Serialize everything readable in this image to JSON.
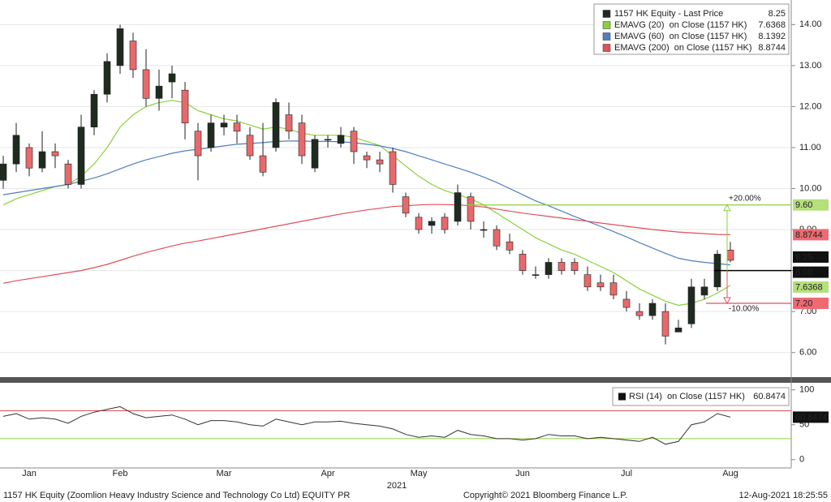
{
  "chart_data": [
    {
      "type": "candlestick",
      "x_label": "2021",
      "legend": "top-right",
      "grid": true,
      "categories": [
        null,
        null,
        "Jan",
        null,
        null,
        null,
        null,
        null,
        null,
        "Feb",
        null,
        null,
        null,
        null,
        null,
        null,
        null,
        "Mar",
        null,
        null,
        null,
        null,
        null,
        null,
        null,
        "Apr",
        null,
        null,
        null,
        null,
        null,
        null,
        "May",
        null,
        null,
        null,
        null,
        null,
        null,
        null,
        "Jun",
        null,
        null,
        null,
        null,
        null,
        null,
        null,
        "Jul",
        null,
        null,
        null,
        null,
        null,
        null,
        null,
        "Aug"
      ],
      "ylim": [
        5.4,
        14.6
      ],
      "yticks": [
        {
          "value": 6,
          "label": "6.00"
        },
        {
          "value": 7,
          "label": "7.00"
        },
        {
          "value": 8,
          "label": "8.00"
        },
        {
          "value": 9,
          "label": "9.00"
        },
        {
          "value": 10,
          "label": "10.00"
        },
        {
          "value": 11,
          "label": "11.00"
        },
        {
          "value": 12,
          "label": "12.00"
        },
        {
          "value": 13,
          "label": "13.00"
        },
        {
          "value": 14,
          "label": "14.00"
        }
      ],
      "candles": {
        "name": "1157 HK Equity - Last Price",
        "color": "#1f2b1f",
        "up_color": "#1f2b1f",
        "down_color": "#e8696b",
        "open": [
          10.2,
          10.6,
          11.0,
          10.5,
          10.9,
          10.6,
          10.1,
          11.5,
          12.3,
          13.0,
          13.6,
          12.9,
          12.2,
          12.6,
          12.4,
          11.4,
          11.0,
          11.5,
          11.6,
          11.3,
          10.8,
          11.0,
          11.8,
          11.6,
          10.5,
          11.2,
          11.1,
          11.4,
          10.8,
          10.7,
          10.9,
          9.8,
          9.3,
          9.1,
          9.3,
          9.2,
          9.8,
          9.0,
          9.0,
          8.7,
          8.4,
          7.9,
          7.9,
          8.2,
          8.2,
          7.9,
          7.7,
          7.7,
          7.3,
          7.0,
          6.9,
          7.0,
          6.5,
          6.7,
          7.4,
          7.6,
          8.5
        ],
        "high": [
          10.8,
          11.6,
          11.1,
          11.4,
          11.1,
          10.7,
          11.8,
          12.4,
          13.3,
          14.0,
          13.8,
          13.4,
          12.9,
          13.0,
          12.6,
          11.6,
          11.8,
          11.8,
          11.8,
          11.5,
          11.6,
          12.2,
          12.1,
          11.8,
          11.3,
          11.3,
          11.5,
          11.5,
          10.9,
          10.9,
          11.0,
          9.9,
          9.4,
          9.3,
          9.4,
          10.1,
          9.9,
          9.2,
          9.1,
          8.9,
          8.5,
          8.1,
          8.3,
          8.3,
          8.3,
          8.1,
          7.9,
          7.9,
          7.5,
          7.2,
          7.3,
          7.2,
          6.8,
          7.8,
          7.8,
          8.5,
          8.7
        ],
        "low": [
          10.0,
          10.4,
          10.3,
          10.4,
          10.5,
          10.0,
          10.0,
          11.3,
          12.1,
          12.8,
          12.7,
          12.0,
          11.9,
          12.2,
          11.2,
          10.2,
          10.9,
          11.3,
          11.1,
          10.7,
          10.3,
          10.9,
          11.2,
          10.6,
          10.4,
          11.0,
          11.0,
          10.6,
          10.5,
          10.4,
          9.9,
          9.3,
          8.9,
          8.9,
          8.9,
          9.1,
          9.0,
          8.8,
          8.5,
          8.4,
          7.9,
          7.8,
          7.8,
          7.9,
          7.9,
          7.5,
          7.5,
          7.3,
          7.0,
          6.8,
          6.8,
          6.2,
          6.5,
          6.6,
          7.3,
          7.5,
          8.2
        ],
        "close": [
          10.6,
          11.3,
          10.5,
          10.9,
          10.8,
          10.1,
          11.5,
          12.3,
          13.1,
          13.9,
          12.9,
          12.2,
          12.5,
          12.8,
          11.6,
          10.8,
          11.6,
          11.6,
          11.4,
          10.8,
          10.4,
          12.1,
          11.4,
          10.8,
          11.2,
          11.2,
          11.3,
          10.9,
          10.7,
          10.6,
          10.1,
          9.4,
          9.0,
          9.2,
          9.0,
          9.9,
          9.2,
          9.0,
          8.6,
          8.5,
          8.0,
          7.9,
          8.2,
          8.0,
          8.0,
          7.6,
          7.6,
          7.4,
          7.1,
          6.9,
          7.2,
          6.4,
          6.6,
          7.6,
          7.6,
          8.4,
          8.25
        ]
      },
      "series": [
        {
          "name": "EMAVG (20)  on Close (1157 HK)",
          "color": "#8cd03a",
          "values": [
            9.6,
            9.75,
            9.85,
            9.95,
            10.05,
            10.1,
            10.3,
            10.6,
            11.0,
            11.5,
            11.8,
            12.0,
            12.1,
            12.15,
            12.1,
            11.9,
            11.8,
            11.7,
            11.65,
            11.55,
            11.45,
            11.5,
            11.45,
            11.35,
            11.3,
            11.3,
            11.3,
            11.25,
            11.15,
            11.05,
            10.8,
            10.55,
            10.3,
            10.1,
            9.95,
            9.85,
            9.75,
            9.6,
            9.4,
            9.2,
            9.0,
            8.8,
            8.65,
            8.5,
            8.4,
            8.25,
            8.1,
            7.95,
            7.75,
            7.55,
            7.4,
            7.25,
            7.15,
            7.2,
            7.3,
            7.45,
            7.6368
          ]
        },
        {
          "name": "EMAVG (60)  on Close (1157 HK)",
          "color": "#4f7fbf",
          "values": [
            9.85,
            9.9,
            9.95,
            10.0,
            10.05,
            10.1,
            10.18,
            10.26,
            10.36,
            10.48,
            10.6,
            10.7,
            10.78,
            10.86,
            10.92,
            10.96,
            11.0,
            11.04,
            11.08,
            11.1,
            11.12,
            11.15,
            11.16,
            11.16,
            11.15,
            11.15,
            11.14,
            11.12,
            11.08,
            11.04,
            10.98,
            10.9,
            10.8,
            10.7,
            10.6,
            10.5,
            10.4,
            10.28,
            10.15,
            10.0,
            9.85,
            9.7,
            9.58,
            9.45,
            9.32,
            9.2,
            9.08,
            8.95,
            8.82,
            8.68,
            8.55,
            8.42,
            8.3,
            8.24,
            8.2,
            8.17,
            8.1392
          ]
        },
        {
          "name": "EMAVG (200)  on Close (1157 HK)",
          "color": "#e0505a",
          "values": [
            7.69,
            7.75,
            7.8,
            7.85,
            7.9,
            7.95,
            8.0,
            8.07,
            8.15,
            8.25,
            8.35,
            8.44,
            8.52,
            8.6,
            8.67,
            8.72,
            8.78,
            8.84,
            8.9,
            8.96,
            9.02,
            9.08,
            9.14,
            9.2,
            9.26,
            9.32,
            9.38,
            9.43,
            9.48,
            9.52,
            9.56,
            9.58,
            9.6,
            9.61,
            9.61,
            9.6,
            9.58,
            9.55,
            9.5,
            9.45,
            9.4,
            9.36,
            9.32,
            9.28,
            9.24,
            9.2,
            9.16,
            9.12,
            9.08,
            9.04,
            9.0,
            8.97,
            8.94,
            8.92,
            8.9,
            8.88,
            8.8744
          ]
        }
      ],
      "levels": [
        {
          "value": 9.6,
          "label": "9.60",
          "annotation": "+20.00%",
          "color": "#8cd03a"
        },
        {
          "value": 8,
          "label": "8.00",
          "color": "#000000"
        },
        {
          "value": 7.2,
          "label": "7.20",
          "annotation": "-10.00%",
          "color": "#e0505a"
        }
      ]
    },
    {
      "type": "line",
      "ylim": [
        -12,
        109
      ],
      "yticks": [
        0,
        50,
        100
      ],
      "levels": [
        70,
        30
      ],
      "level_colors": [
        "#e0505a",
        "#8cd03a"
      ],
      "series": [
        {
          "name": "RSI (14)  on Close (1157 HK)",
          "color": "#333333",
          "values": [
            62,
            66,
            58,
            60,
            58,
            52,
            62,
            68,
            72,
            76,
            66,
            60,
            62,
            64,
            58,
            50,
            56,
            56,
            54,
            50,
            48,
            58,
            54,
            50,
            54,
            54,
            55,
            52,
            50,
            48,
            44,
            36,
            32,
            34,
            32,
            42,
            36,
            34,
            30,
            30,
            28,
            30,
            36,
            34,
            34,
            30,
            32,
            30,
            28,
            26,
            32,
            22,
            26,
            50,
            54,
            66,
            60.8474
          ]
        }
      ]
    }
  ],
  "footer": {
    "left": "1157 HK Equity (Zoomlion Heavy Industry Science and Technology Co Ltd) EQUITY PR",
    "center": "Copyright© 2021 Bloomberg Finance L.P.",
    "right": "12-Aug-2021 18:25:55"
  }
}
